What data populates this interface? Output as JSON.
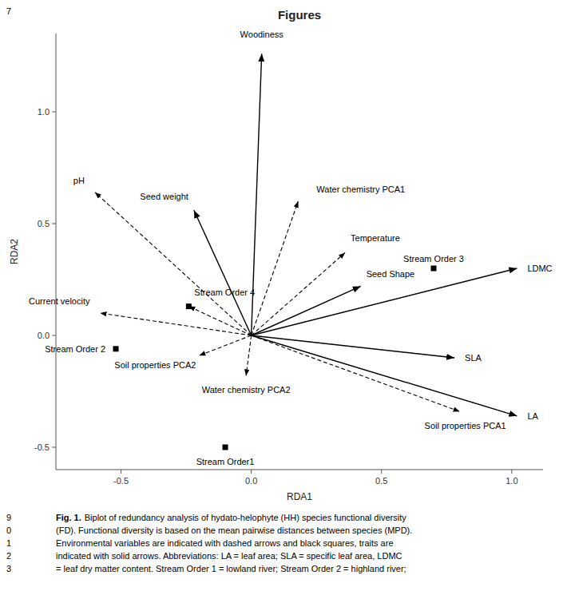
{
  "chart_data": {
    "type": "biplot",
    "title": "Figures",
    "x_label": "RDA1",
    "y_label": "RDA2",
    "xlim": [
      -0.75,
      1.12
    ],
    "ylim": [
      -0.6,
      1.35
    ],
    "xticks": [
      -0.5,
      {
        "value": 0.0,
        "label": "0.0"
      },
      0.5,
      {
        "value": 1.0,
        "label": "1.0"
      }
    ],
    "yticks": [
      -0.5,
      {
        "value": 0.0,
        "label": "0.0"
      },
      0.5,
      {
        "value": 1.0,
        "label": "1.0"
      }
    ],
    "grid": false,
    "color": "#000000",
    "trait_arrows": [
      {
        "label": "Woodiness",
        "x": 0.04,
        "y": 1.26,
        "line_style": "solid",
        "marker": "arrow"
      },
      {
        "label": "Seed weight",
        "x": -0.22,
        "y": 0.56,
        "line_style": "solid",
        "marker": "arrow"
      },
      {
        "label": "Seed Shape",
        "x": 0.42,
        "y": 0.22,
        "line_style": "solid",
        "marker": "arrow"
      },
      {
        "label": "LDMC",
        "x": 1.02,
        "y": 0.3,
        "line_style": "solid",
        "marker": "arrow"
      },
      {
        "label": "SLA",
        "x": 0.78,
        "y": -0.1,
        "line_style": "solid",
        "marker": "arrow"
      },
      {
        "label": "LA",
        "x": 1.02,
        "y": -0.36,
        "line_style": "solid",
        "marker": "arrow"
      }
    ],
    "env_arrows": [
      {
        "label": "pH",
        "x": -0.6,
        "y": 0.64,
        "line_style": "dashed",
        "marker": "arrow"
      },
      {
        "label": "Water chemistry PCA1",
        "x": 0.18,
        "y": 0.6,
        "line_style": "dashed",
        "marker": "arrow"
      },
      {
        "label": "Temperature",
        "x": 0.36,
        "y": 0.37,
        "line_style": "dashed",
        "marker": "arrow"
      },
      {
        "label": "Soil properties PCA2",
        "x": -0.2,
        "y": -0.09,
        "line_style": "dashed",
        "marker": "arrow"
      },
      {
        "label": "Water chemistry PCA2",
        "x": -0.02,
        "y": -0.18,
        "line_style": "dashed",
        "marker": "arrow"
      },
      {
        "label": "Soil properties PCA1",
        "x": 0.8,
        "y": -0.34,
        "line_style": "dashed",
        "marker": "arrow"
      },
      {
        "label": "Current velocity",
        "x": -0.58,
        "y": 0.1,
        "line_style": "dashed",
        "marker": "arrow"
      },
      {
        "label": "Stream Order 4",
        "x": -0.24,
        "y": 0.13,
        "line_style": "dashed",
        "marker": "square"
      }
    ],
    "env_points": [
      {
        "label": "Stream Order 2",
        "x": -0.52,
        "y": -0.06,
        "marker": "square"
      },
      {
        "label": "Stream Order 3",
        "x": 0.7,
        "y": 0.3,
        "marker": "square"
      },
      {
        "label": "Stream Order1",
        "x": -0.1,
        "y": -0.5,
        "marker": "square"
      }
    ],
    "caption_label": "Fig. 1.",
    "caption_lines": [
      "Biplot of redundancy analysis of hydato-helophyte (HH) species functional diversity",
      "(FD). Functional diversity is based on the mean pairwise distances between species (MPD).",
      "Environmental variables are indicated with dashed arrows and black squares, traits are",
      "indicated with solid arrows. Abbreviations: LA = leaf area; SLA = specific leaf area, LDMC",
      "= leaf dry matter content. Stream Order 1 = lowland river; Stream Order 2 = highland river;"
    ],
    "margin_labels": [
      "7",
      "9",
      "0",
      "1",
      "2",
      "3"
    ]
  }
}
